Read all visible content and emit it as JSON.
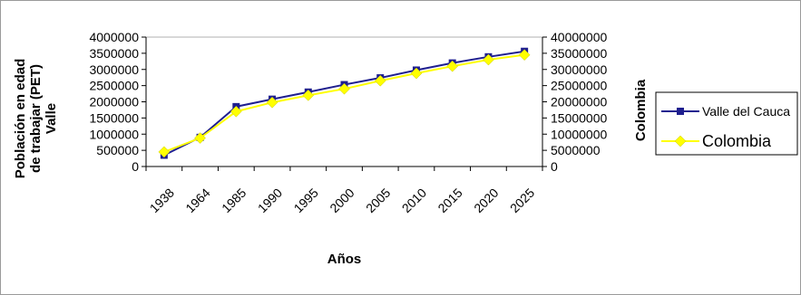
{
  "chart_data": {
    "type": "line",
    "categories": [
      "1938",
      "1964",
      "1985",
      "1990",
      "1995",
      "2000",
      "2005",
      "2010",
      "2015",
      "2020",
      "2025"
    ],
    "series": [
      {
        "name": "Valle del Cauca",
        "axis": "left",
        "color": "#1f1f8f",
        "marker": "square",
        "values": [
          350000,
          900000,
          1850000,
          2080000,
          2300000,
          2530000,
          2740000,
          2980000,
          3200000,
          3390000,
          3560000
        ]
      },
      {
        "name": "Colombia",
        "axis": "right",
        "color": "#ffff00",
        "marker": "diamond",
        "values": [
          4500000,
          8800000,
          17000000,
          19800000,
          22000000,
          24000000,
          26500000,
          28800000,
          31000000,
          33000000,
          34500000
        ]
      }
    ],
    "xlabel": "Años",
    "ylabel_left": "Población en edad de trabajar (PET) Valle",
    "ylabel_right": "Colombia",
    "ylim_left": [
      0,
      4000000
    ],
    "ylim_right": [
      0,
      40000000
    ],
    "yticks_left": [
      "0",
      "500000",
      "1000000",
      "1500000",
      "2000000",
      "2500000",
      "3000000",
      "3500000",
      "4000000"
    ],
    "yticks_right": [
      "0",
      "5000000",
      "10000000",
      "15000000",
      "20000000",
      "25000000",
      "30000000",
      "35000000",
      "40000000"
    ],
    "ylabel_left_lines": [
      "Población en edad",
      "de trabajar (PET)",
      "Valle"
    ],
    "grid": false,
    "legend_position": "right"
  }
}
